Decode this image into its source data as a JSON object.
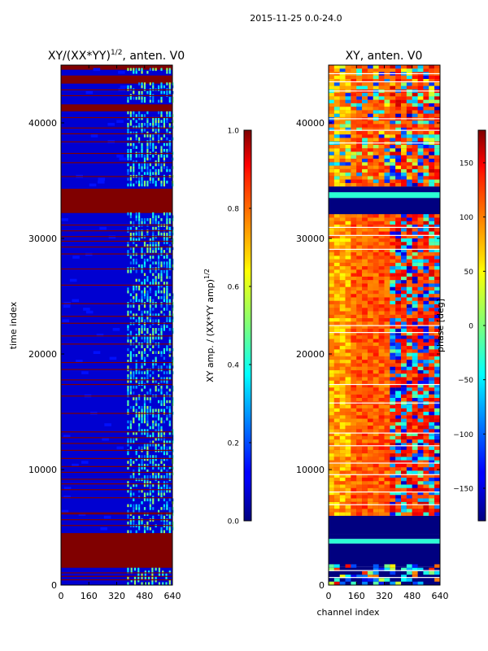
{
  "suptitle": "2015-11-25 0.0-24.0",
  "chart_data": [
    {
      "type": "heatmap",
      "title_text": "XY/(XX*YY)",
      "title_sup": "1/2",
      "title_suffix": ", anten. V0",
      "ylabel": "time index",
      "xlabel": "",
      "x_ticks": [
        0,
        160,
        320,
        480,
        640
      ],
      "y_ticks": [
        0,
        10000,
        20000,
        30000,
        40000
      ],
      "xlim": [
        0,
        640
      ],
      "ylim": [
        0,
        45000
      ],
      "vmin": 0.0,
      "vmax": 1.0,
      "colorbar": {
        "label_text": "XY amp. / (XX*YY amp)",
        "label_sup": "1/2",
        "ticks": [
          "0.0",
          "0.2",
          "0.4",
          "0.6",
          "0.8",
          "1.0"
        ]
      },
      "background_value": 0.08,
      "value_bands": [
        {
          "y0": 1500,
          "y1": 4500,
          "value": 1.0
        },
        {
          "y0": 32200,
          "y1": 34300,
          "value": 1.0
        },
        {
          "y0": 41000,
          "y1": 41600,
          "value": 1.0
        },
        {
          "y0": 43400,
          "y1": 44100,
          "value": 1.0
        },
        {
          "y0": 44600,
          "y1": 45000,
          "value": 1.0
        }
      ],
      "flag_rows": [
        500,
        800,
        1100,
        5200,
        5700,
        6200,
        6300,
        7600,
        8300,
        8800,
        9200,
        9800,
        10300,
        11000,
        11700,
        12300,
        12800,
        13300,
        14900,
        16400,
        17400,
        17800,
        18700,
        19300,
        20900,
        21600,
        22700,
        23300,
        24400,
        26000,
        27400,
        28700,
        29300,
        29800,
        30200,
        30700,
        31200,
        35400,
        36600,
        37400,
        38400,
        39100,
        39600,
        40500,
        42400,
        42900
      ],
      "bright_column_range": [
        380,
        640
      ],
      "bright_value_range": [
        0.2,
        0.55
      ]
    },
    {
      "type": "heatmap",
      "title_text": "XY, anten. V0",
      "ylabel": "",
      "xlabel": "channel index",
      "x_ticks": [
        0,
        160,
        320,
        480,
        640
      ],
      "y_ticks": [
        0,
        10000,
        20000,
        30000,
        40000
      ],
      "xlim": [
        0,
        640
      ],
      "ylim": [
        0,
        45000
      ],
      "vmin": -180,
      "vmax": 180,
      "colorbar": {
        "label_text": "phase [deg]",
        "ticks": [
          "−150",
          "−100",
          "−50",
          "0",
          "50",
          "100",
          "150"
        ]
      },
      "value_bands": [
        {
          "y0": 0,
          "y1": 1600,
          "value": -180
        },
        {
          "y0": 1600,
          "y1": 3600,
          "value": -180
        },
        {
          "y0": 3600,
          "y1": 4000,
          "value": -30
        },
        {
          "y0": 4000,
          "y1": 4400,
          "value": -180
        },
        {
          "y0": 4400,
          "y1": 6000,
          "value": -180
        },
        {
          "y0": 6000,
          "y1": 7500,
          "value": 150
        },
        {
          "y0": 7500,
          "y1": 14000,
          "value": 120
        },
        {
          "y0": 14000,
          "y1": 30000,
          "value": 95
        },
        {
          "y0": 30000,
          "y1": 32000,
          "value": 110
        },
        {
          "y0": 32000,
          "y1": 34500,
          "value": -180
        },
        {
          "y0": 33500,
          "y1": 34000,
          "value": -30
        },
        {
          "y0": 34500,
          "y1": 41500,
          "value": 120
        },
        {
          "y0": 41500,
          "y1": 45000,
          "value": 80
        }
      ],
      "flag_rows": [
        700,
        1300,
        7000,
        8100,
        9600,
        10600,
        12100,
        13200,
        15800,
        17400,
        21900,
        22500,
        29100,
        30300,
        31000,
        38300,
        39400,
        40400,
        42800,
        43600,
        44300
      ]
    }
  ]
}
